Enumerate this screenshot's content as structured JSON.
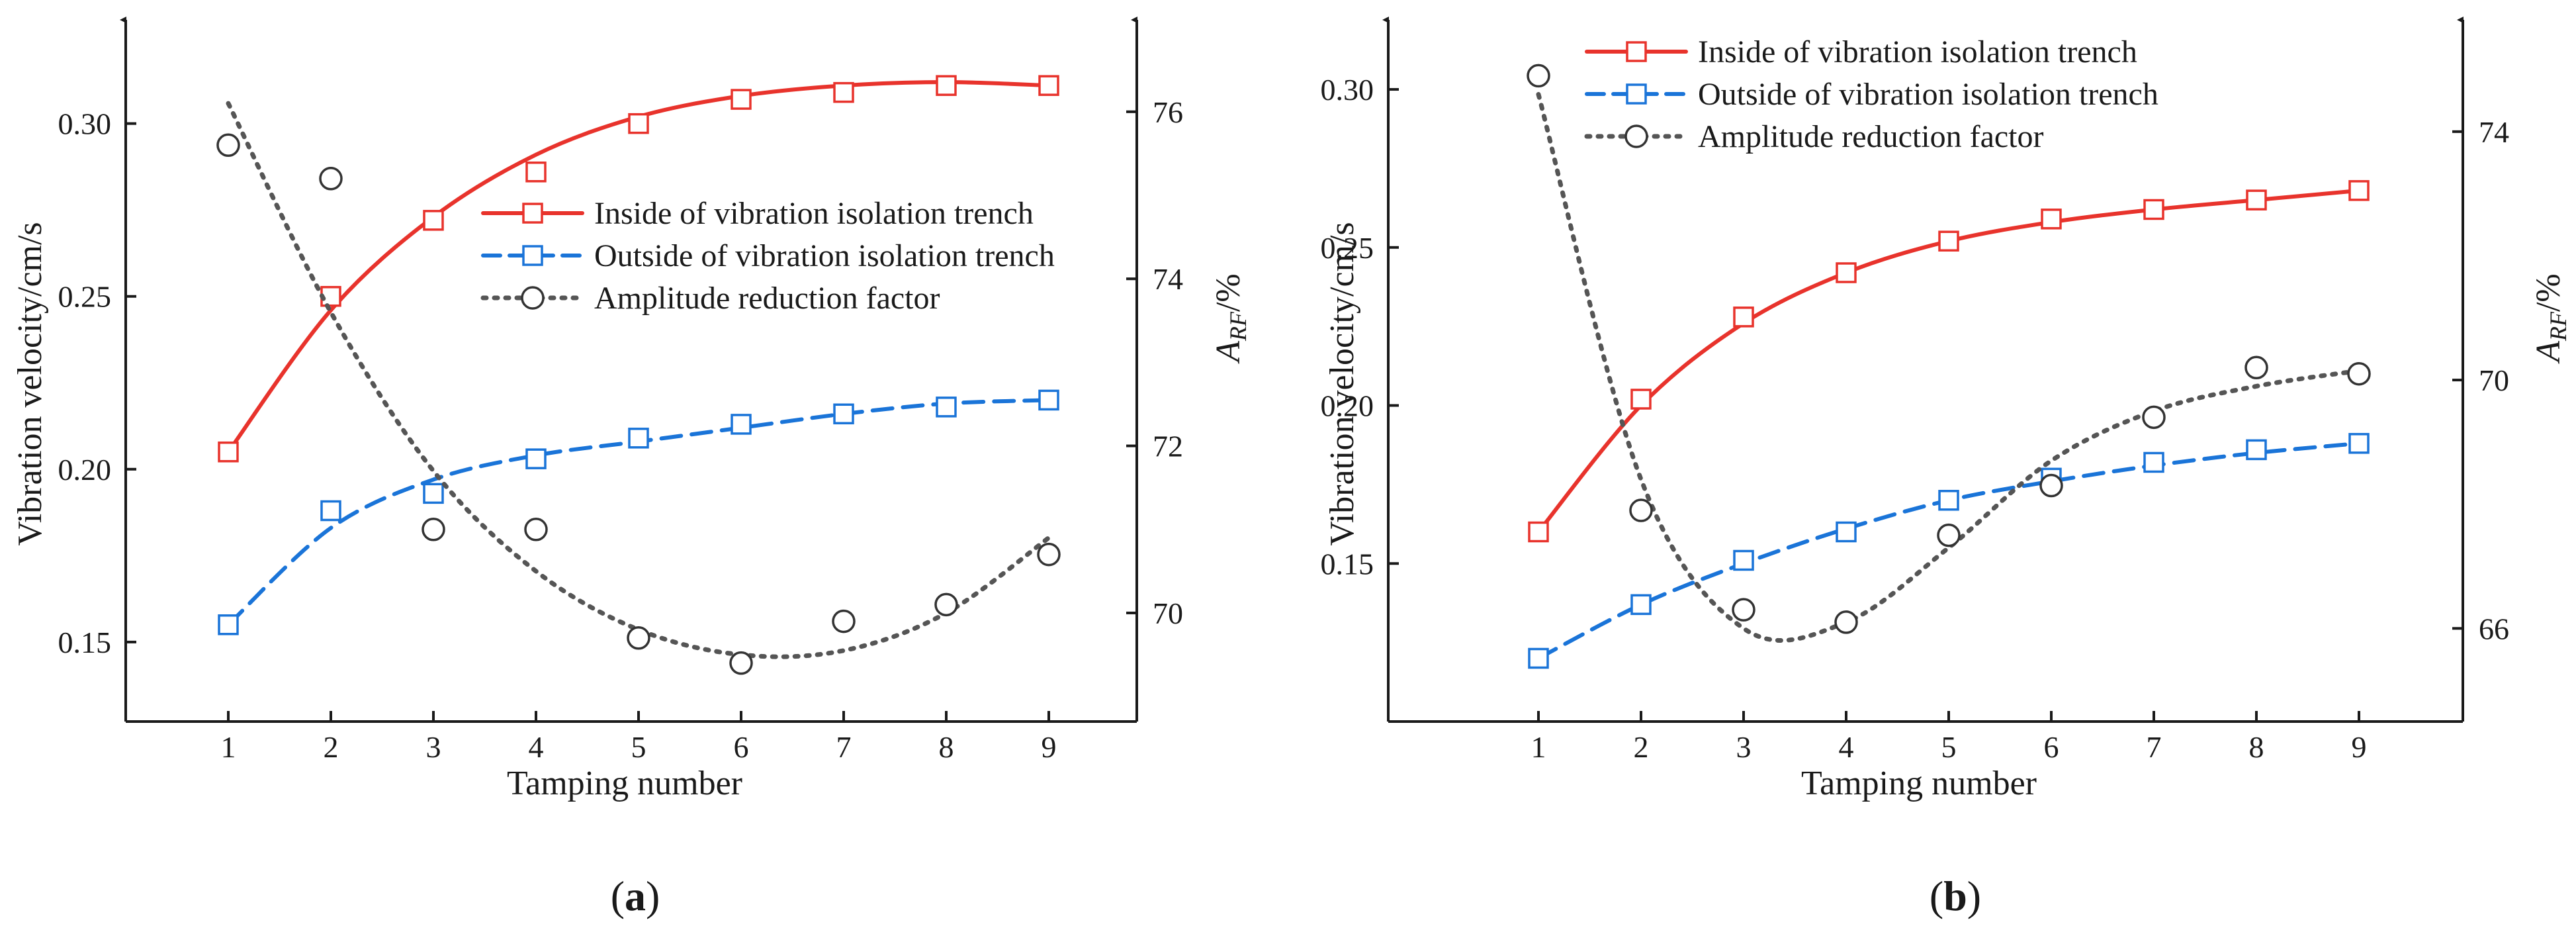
{
  "chart_data": [
    {
      "type": "line",
      "panel_label": "a",
      "xlabel": "Tamping number",
      "ylabel": "Vibration velocity/cm/s",
      "y2label_main": "A",
      "y2label_sub": "RF",
      "y2label_suffix": "/%",
      "x": [
        1,
        2,
        3,
        4,
        5,
        6,
        7,
        8,
        9
      ],
      "x_ticks": [
        "1",
        "2",
        "3",
        "4",
        "5",
        "6",
        "7",
        "8",
        "9"
      ],
      "ylim": [
        0.127,
        0.33
      ],
      "y_ticks": [
        "0.15",
        "0.20",
        "0.25",
        "0.30"
      ],
      "y_tick_values": [
        0.15,
        0.2,
        0.25,
        0.3
      ],
      "y2lim": [
        68.7,
        77.1
      ],
      "y2_ticks": [
        "70",
        "72",
        "74",
        "76"
      ],
      "y2_tick_values": [
        70,
        72,
        74,
        76
      ],
      "legend_position": "center-right",
      "series": [
        {
          "name": "Inside of vibration isolation trench",
          "axis": "left",
          "color": "#e8332c",
          "line": "solid",
          "marker": "square",
          "values": [
            0.205,
            0.25,
            0.272,
            0.286,
            0.3,
            0.307,
            0.309,
            0.311,
            0.311
          ],
          "fit": [
            0.205,
            0.246,
            0.273,
            0.291,
            0.302,
            0.308,
            0.311,
            0.312,
            0.311
          ]
        },
        {
          "name": "Outside of vibration isolation trench",
          "axis": "left",
          "color": "#1a74d8",
          "line": "dashed",
          "marker": "square",
          "values": [
            0.155,
            0.188,
            0.193,
            0.203,
            0.209,
            0.213,
            0.216,
            0.218,
            0.22
          ],
          "fit": [
            0.155,
            0.183,
            0.197,
            0.204,
            0.208,
            0.212,
            0.216,
            0.219,
            0.22
          ]
        },
        {
          "name": "Amplitude reduction factor",
          "axis": "right",
          "color": "#555555",
          "line": "dotted",
          "marker": "circle",
          "values": [
            75.6,
            75.2,
            71.0,
            71.0,
            69.7,
            69.4,
            69.9,
            70.1,
            70.7
          ],
          "fit": [
            76.1,
            73.6,
            71.7,
            70.5,
            69.8,
            69.5,
            69.55,
            70.0,
            70.9
          ]
        }
      ]
    },
    {
      "type": "line",
      "panel_label": "b",
      "xlabel": "Tamping number",
      "ylabel": "Vibration velocity/cm/s",
      "y2label_main": "A",
      "y2label_sub": "RF",
      "y2label_suffix": "/%",
      "x": [
        1,
        2,
        3,
        4,
        5,
        6,
        7,
        8,
        9
      ],
      "x_ticks": [
        "1",
        "2",
        "3",
        "4",
        "5",
        "6",
        "7",
        "8",
        "9"
      ],
      "ylim": [
        0.1,
        0.322
      ],
      "y_ticks": [
        "0.15",
        "0.20",
        "0.25",
        "0.30"
      ],
      "y_tick_values": [
        0.15,
        0.2,
        0.25,
        0.3
      ],
      "y2lim": [
        64.5,
        75.8
      ],
      "y2_ticks": [
        "66",
        "70",
        "74"
      ],
      "y2_tick_values": [
        66,
        70,
        74
      ],
      "legend_position": "top-left",
      "series": [
        {
          "name": "Inside of vibration isolation trench",
          "axis": "left",
          "color": "#e8332c",
          "line": "solid",
          "marker": "square",
          "values": [
            0.16,
            0.202,
            0.228,
            0.242,
            0.252,
            0.259,
            0.262,
            0.265,
            0.268
          ],
          "fit": [
            0.16,
            0.2,
            0.226,
            0.242,
            0.252,
            0.258,
            0.262,
            0.265,
            0.268
          ]
        },
        {
          "name": "Outside of vibration isolation trench",
          "axis": "left",
          "color": "#1a74d8",
          "line": "dashed",
          "marker": "square",
          "values": [
            0.12,
            0.137,
            0.151,
            0.16,
            0.17,
            0.177,
            0.182,
            0.186,
            0.188
          ],
          "fit": [
            0.12,
            0.137,
            0.15,
            0.161,
            0.17,
            0.176,
            0.181,
            0.185,
            0.188
          ]
        },
        {
          "name": "Amplitude reduction factor",
          "axis": "right",
          "color": "#555555",
          "line": "dotted",
          "marker": "circle",
          "values": [
            74.9,
            67.9,
            66.3,
            66.1,
            67.5,
            68.3,
            69.4,
            70.2,
            70.1
          ],
          "fit": [
            74.6,
            68.4,
            66.0,
            66.1,
            67.3,
            68.7,
            69.5,
            69.9,
            70.15
          ]
        }
      ]
    }
  ]
}
